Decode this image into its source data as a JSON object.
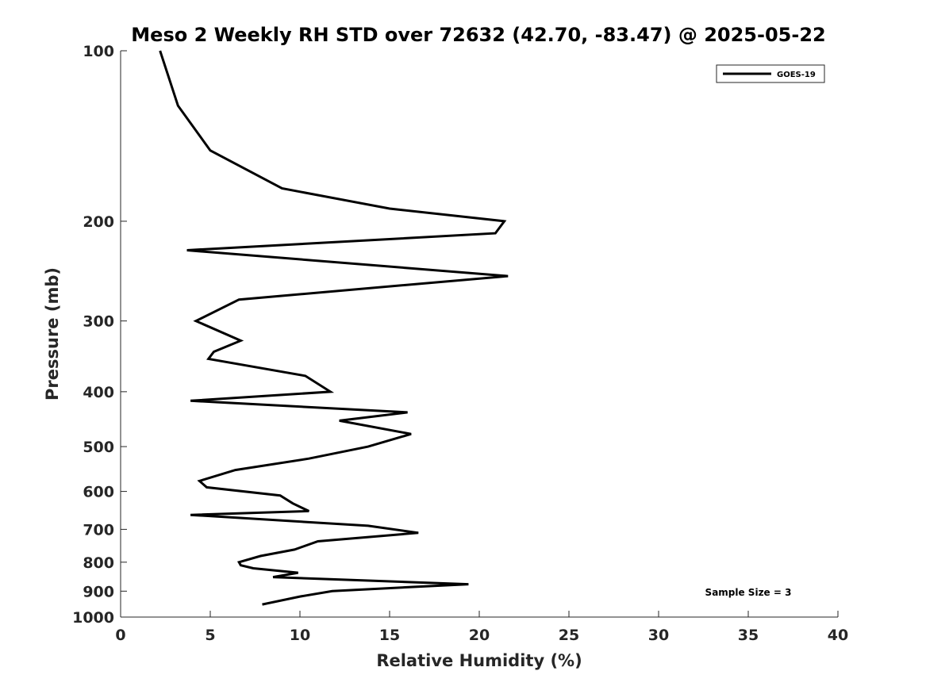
{
  "chart_data": {
    "type": "line",
    "title": "Meso 2 Weekly RH STD over 72632 (42.70, -83.47) @ 2025-05-22",
    "xlabel": "Relative Humidity (%)",
    "ylabel": "Pressure (mb)",
    "xlim": [
      0,
      40
    ],
    "ylim": [
      100,
      1000
    ],
    "y_scale": "log",
    "y_reversed": true,
    "xticks": [
      0,
      5,
      10,
      15,
      20,
      25,
      30,
      35,
      40
    ],
    "yticks": [
      100,
      200,
      300,
      400,
      500,
      600,
      700,
      800,
      900,
      1000
    ],
    "legend_position": "top-right",
    "grid": false,
    "annotation": "Sample Size = 3",
    "series": [
      {
        "name": "GOES-19",
        "color": "#000000",
        "points": [
          [
            2.2,
            100
          ],
          [
            3.2,
            125
          ],
          [
            5.0,
            150
          ],
          [
            9.0,
            175
          ],
          [
            15.0,
            190
          ],
          [
            21.4,
            200
          ],
          [
            20.9,
            210
          ],
          [
            3.7,
            225
          ],
          [
            21.6,
            250
          ],
          [
            6.6,
            275
          ],
          [
            4.2,
            300
          ],
          [
            6.7,
            325
          ],
          [
            5.2,
            340
          ],
          [
            4.9,
            350
          ],
          [
            10.3,
            375
          ],
          [
            11.7,
            400
          ],
          [
            3.9,
            415
          ],
          [
            16.0,
            435
          ],
          [
            12.2,
            450
          ],
          [
            16.2,
            475
          ],
          [
            13.8,
            500
          ],
          [
            10.5,
            525
          ],
          [
            6.4,
            550
          ],
          [
            4.4,
            575
          ],
          [
            4.8,
            590
          ],
          [
            8.9,
            610
          ],
          [
            9.6,
            630
          ],
          [
            10.5,
            650
          ],
          [
            3.9,
            660
          ],
          [
            13.8,
            690
          ],
          [
            16.6,
            710
          ],
          [
            11.0,
            735
          ],
          [
            9.7,
            760
          ],
          [
            7.8,
            780
          ],
          [
            6.6,
            800
          ],
          [
            6.7,
            810
          ],
          [
            7.4,
            820
          ],
          [
            9.9,
            835
          ],
          [
            8.5,
            850
          ],
          [
            19.4,
            875
          ],
          [
            16.2,
            885
          ],
          [
            11.8,
            900
          ],
          [
            10.0,
            920
          ],
          [
            7.9,
            950
          ]
        ]
      }
    ]
  }
}
